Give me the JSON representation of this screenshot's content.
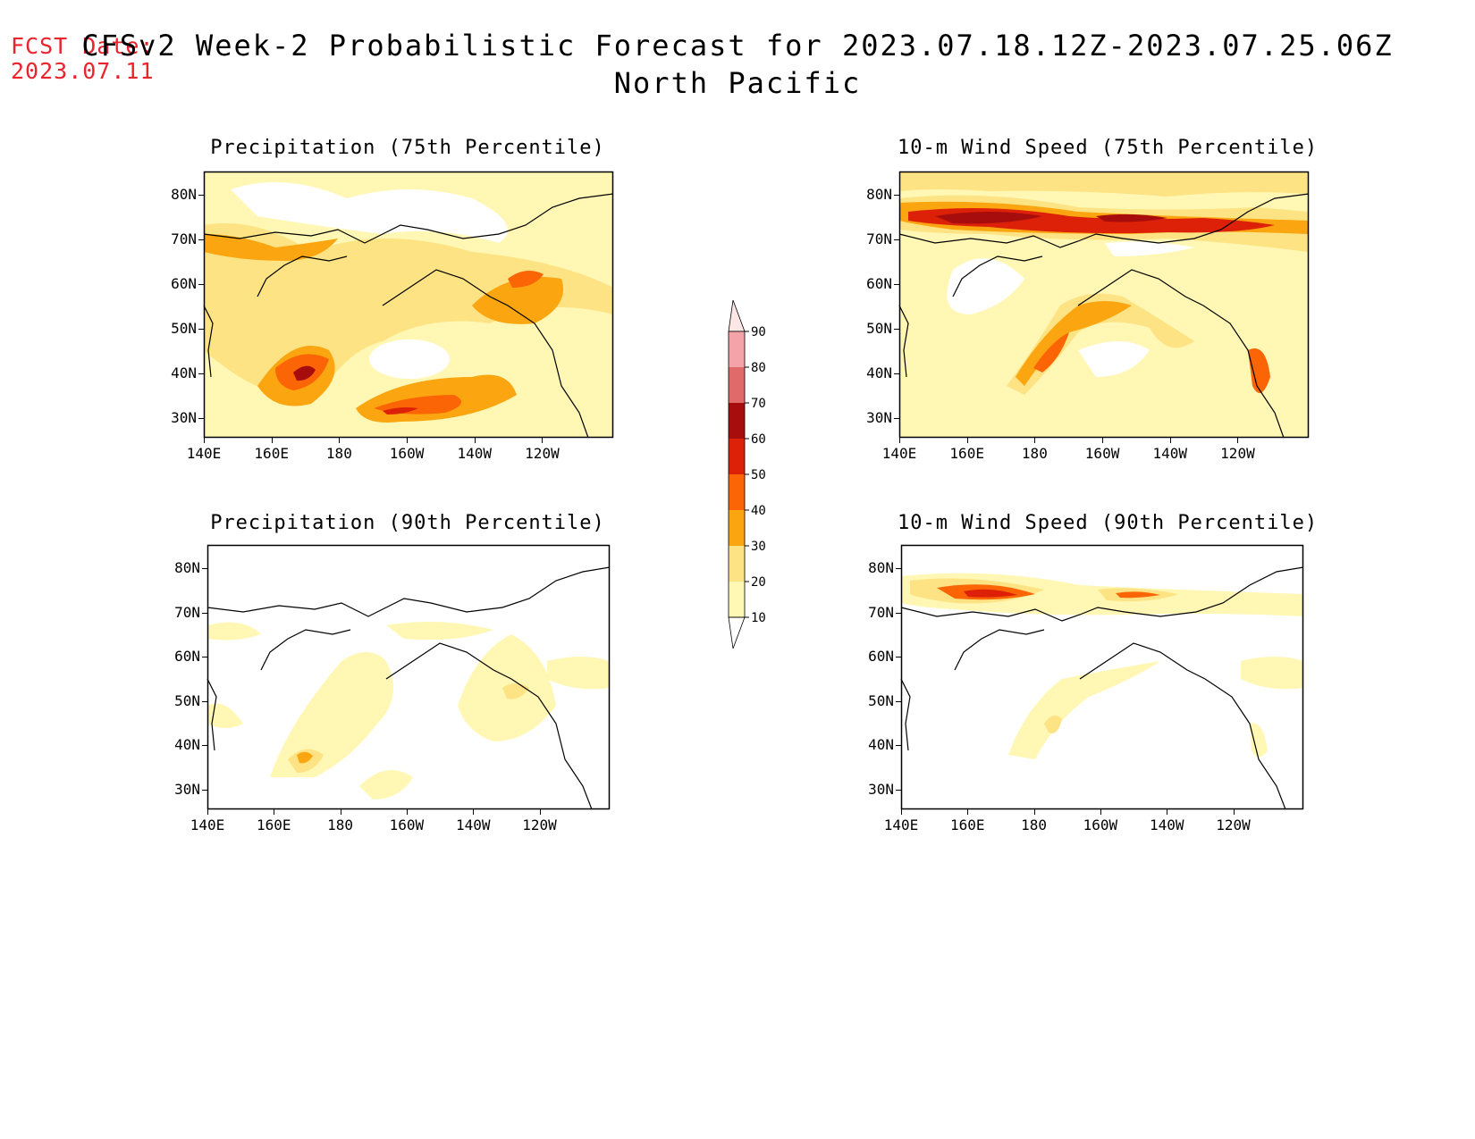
{
  "header": {
    "fcst_label": "FCST Date:",
    "fcst_date": "2023.07.11",
    "title_line1": "CFSv2 Week-2 Probabilistic Forecast for 2023.07.18.12Z-2023.07.25.06Z",
    "title_line2": "North Pacific"
  },
  "panels": [
    {
      "title": "Precipitation (75th Percentile)"
    },
    {
      "title": "10-m Wind Speed (75th Percentile)"
    },
    {
      "title": "Precipitation (90th Percentile)"
    },
    {
      "title": "10-m Wind Speed (90th Percentile)"
    }
  ],
  "axes": {
    "lat_labels": [
      "80N",
      "70N",
      "60N",
      "50N",
      "40N",
      "30N"
    ],
    "lon_labels": [
      "140E",
      "160E",
      "180",
      "160W",
      "140W",
      "120W"
    ]
  },
  "colorbar": {
    "levels": [
      "90",
      "80",
      "70",
      "60",
      "50",
      "40",
      "30",
      "20",
      "10"
    ],
    "colors": [
      "#fde6e6",
      "#f4a4a8",
      "#e06a6a",
      "#a80d0d",
      "#dd2108",
      "#fb6505",
      "#fba510",
      "#fde383",
      "#fff7b3"
    ]
  }
}
